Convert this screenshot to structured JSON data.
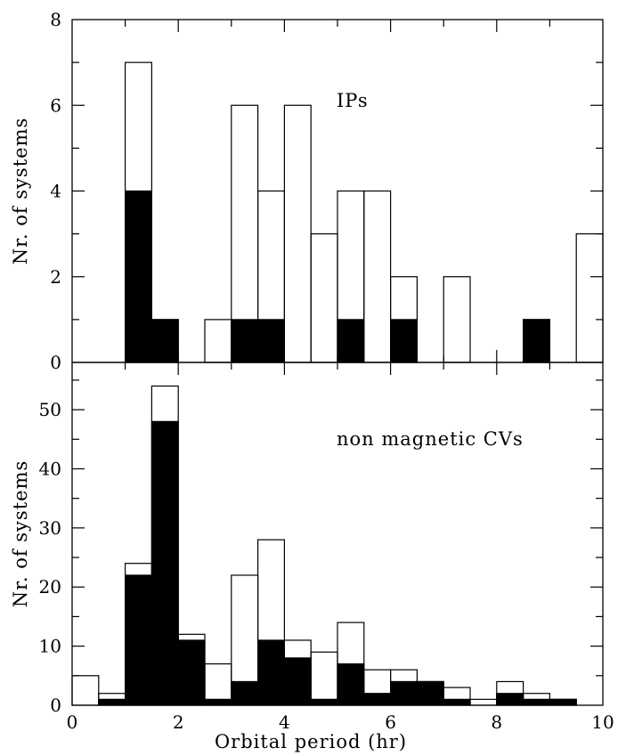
{
  "chart_data": [
    {
      "type": "bar",
      "panel": "top",
      "annotation": "IPs",
      "ylabel": "Nr. of systems",
      "xlim": [
        0,
        10
      ],
      "ylim": [
        0,
        8
      ],
      "bin_width": 0.5,
      "bin_starts": [
        0,
        0.5,
        1,
        1.5,
        2,
        2.5,
        3,
        3.5,
        4,
        4.5,
        5,
        5.5,
        6,
        6.5,
        7,
        7.5,
        8,
        8.5,
        9,
        9.5
      ],
      "series": [
        {
          "name": "",
          "style": "open",
          "values": [
            0,
            0,
            7,
            1,
            0,
            1,
            6,
            4,
            6,
            3,
            4,
            4,
            2,
            0,
            2,
            0,
            0,
            1,
            0,
            3
          ]
        },
        {
          "name": "",
          "style": "filled",
          "values": [
            0,
            0,
            4,
            1,
            0,
            0,
            1,
            1,
            0,
            0,
            1,
            0,
            1,
            0,
            0,
            0,
            0,
            1,
            0,
            0
          ]
        }
      ],
      "yticks_labeled": [
        0,
        2,
        4,
        6,
        8
      ],
      "yticks_minor": [
        1,
        3,
        5,
        7
      ]
    },
    {
      "type": "bar",
      "panel": "bottom",
      "annotation": "non magnetic CVs",
      "xlabel": "Orbital period (hr)",
      "ylabel": "Nr. of systems",
      "xlim": [
        0,
        10
      ],
      "ylim": [
        0,
        58
      ],
      "bin_width": 0.5,
      "bin_starts": [
        0,
        0.5,
        1,
        1.5,
        2,
        2.5,
        3,
        3.5,
        4,
        4.5,
        5,
        5.5,
        6,
        6.5,
        7,
        7.5,
        8,
        8.5,
        9,
        9.5
      ],
      "series": [
        {
          "name": "",
          "style": "open",
          "values": [
            5,
            2,
            24,
            54,
            12,
            7,
            22,
            28,
            11,
            9,
            14,
            6,
            6,
            4,
            3,
            1,
            4,
            2,
            1,
            0
          ]
        },
        {
          "name": "",
          "style": "filled",
          "values": [
            0,
            1,
            22,
            48,
            11,
            1,
            4,
            11,
            8,
            1,
            7,
            2,
            4,
            4,
            1,
            0,
            2,
            1,
            1,
            0
          ]
        }
      ],
      "yticks_labeled": [
        0,
        10,
        20,
        30,
        40,
        50
      ],
      "yticks_minor": [
        5,
        15,
        25,
        35,
        45,
        55
      ],
      "xticks_labeled": [
        0,
        2,
        4,
        6,
        8,
        10
      ],
      "xticks_minor": [
        1,
        3,
        5,
        7,
        9
      ]
    }
  ]
}
